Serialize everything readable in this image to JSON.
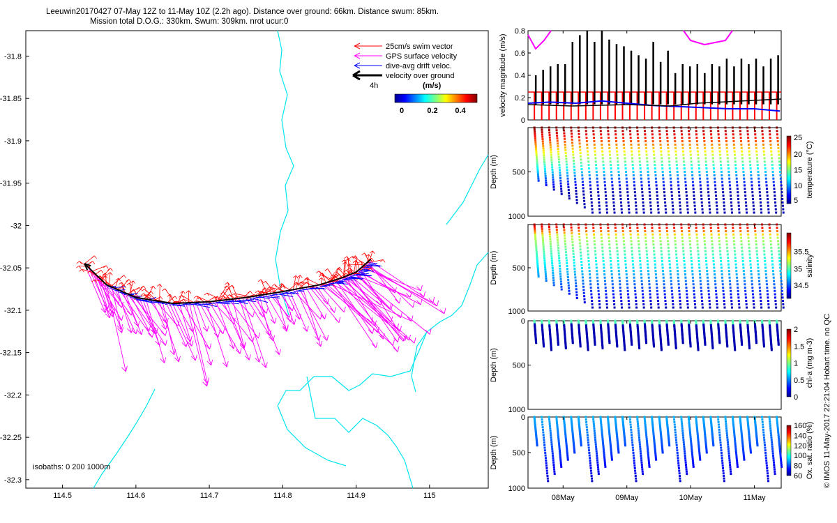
{
  "header": {
    "line1": "Leeuwin20170427 07-May 12Z to 11-May 10Z (2.2h ago). Distance over ground: 66km. Distance swum: 85km.",
    "line2": "Mission total D.O.G.: 330km. Swum: 309km. nrot ucur:0"
  },
  "legend": {
    "items": [
      {
        "label": "25cm/s swim vector",
        "color": "#ff0000"
      },
      {
        "label": "GPS surface velocity",
        "color": "#ff00ff"
      },
      {
        "label": "dive-avg drift veloc.",
        "color": "#0000ff"
      },
      {
        "label": "velocity over ground",
        "color": "#000000"
      }
    ],
    "interval_label": "4h",
    "colorbar_label": "(m/s)",
    "colorbar_ticks": [
      "0",
      "0.2",
      "0.4"
    ]
  },
  "isobaths_label": "isobaths: 0    200   1000m",
  "footer_vertical": "© IMOS 11-May-2017 22:21:04 Hobart time. no QC",
  "chart_data": [
    {
      "type": "line",
      "name": "map",
      "x_ticks": [
        "114.5",
        "114.6",
        "114.7",
        "114.8",
        "114.9",
        "115"
      ],
      "y_ticks": [
        "-31.8",
        "-31.85",
        "-31.9",
        "-31.95",
        "-32",
        "-32.05",
        "-32.1",
        "-32.15",
        "-32.2",
        "-32.25",
        "-32.3"
      ],
      "xlim": [
        114.45,
        115.08
      ],
      "ylim": [
        -32.31,
        -31.77
      ],
      "track": [
        [
          114.53,
          -32.045
        ],
        [
          114.56,
          -32.07
        ],
        [
          114.6,
          -32.085
        ],
        [
          114.65,
          -32.092
        ],
        [
          114.7,
          -32.09
        ],
        [
          114.75,
          -32.085
        ],
        [
          114.8,
          -32.078
        ],
        [
          114.85,
          -32.07
        ],
        [
          114.88,
          -32.062
        ],
        [
          114.9,
          -32.055
        ],
        [
          114.92,
          -32.04
        ]
      ]
    },
    {
      "type": "line",
      "name": "velocity",
      "ylabel": "velocity magnitude (m/s)",
      "y_ticks": [
        "0",
        "0.2",
        "0.4",
        "0.6",
        "0.8"
      ],
      "ylim": [
        0,
        0.8
      ],
      "swim_speed": 0.25,
      "drift": [
        [
          7.45,
          0.15
        ],
        [
          7.8,
          0.16
        ],
        [
          8.2,
          0.15
        ],
        [
          8.6,
          0.17
        ],
        [
          9,
          0.15
        ],
        [
          9.4,
          0.13
        ],
        [
          9.8,
          0.12
        ],
        [
          10.2,
          0.11
        ],
        [
          10.6,
          0.1
        ],
        [
          11,
          0.1
        ],
        [
          11.4,
          0.08
        ]
      ],
      "spike_peaks": [
        0.4,
        0.45,
        0.48,
        0.5,
        0.5,
        0.7,
        0.76,
        0.8,
        0.7,
        0.8,
        0.72,
        0.68,
        0.66,
        0.62,
        0.58,
        0.55,
        0.7,
        0.52,
        0.62,
        0.42,
        0.5,
        0.48,
        0.5,
        0.42,
        0.5,
        0.48,
        0.55,
        0.48,
        0.55,
        0.5,
        0.55,
        0.48,
        0.55,
        0.58
      ]
    },
    {
      "type": "scatter",
      "name": "temperature",
      "ylabel": "Depth (m)",
      "y_ticks": [
        "500",
        "1000"
      ],
      "cb_label": "temperature (°C)",
      "cb_ticks": [
        "5",
        "10",
        "15",
        "20",
        "25"
      ]
    },
    {
      "type": "scatter",
      "name": "salinity",
      "ylabel": "Depth (m)",
      "y_ticks": [
        "500",
        "1000"
      ],
      "cb_label": "salinity",
      "cb_ticks": [
        "34.5",
        "35",
        "35.5"
      ]
    },
    {
      "type": "scatter",
      "name": "chla",
      "ylabel": "Depth (m)",
      "y_ticks": [
        "0",
        "500",
        "1000"
      ],
      "cb_label": "chl-a (mg m-3)",
      "cb_ticks": [
        "0",
        "0.5",
        "1",
        "1.5",
        "2"
      ]
    },
    {
      "type": "scatter",
      "name": "oxygen",
      "ylabel": "Depth (m)",
      "y_ticks": [
        "0",
        "500",
        "1000"
      ],
      "cb_label": "Ox. sat. ratio (%)",
      "cb_ticks": [
        "60",
        "80",
        "100",
        "120",
        "140",
        "160"
      ],
      "x_ticks": [
        "08May",
        "09May",
        "10May",
        "11May"
      ]
    }
  ]
}
